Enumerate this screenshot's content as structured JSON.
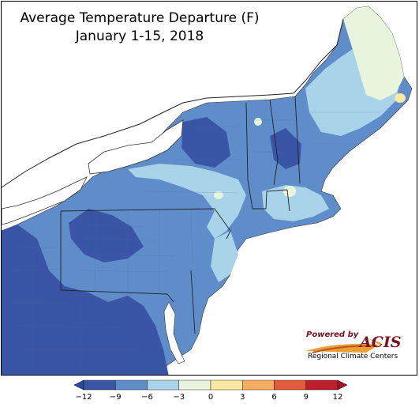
{
  "title": {
    "line1": "Average Temperature Departure (F)",
    "line2": "January 1-15, 2018"
  },
  "legend": {
    "ticks": [
      "−12",
      "−9",
      "−6",
      "−3",
      "0",
      "3",
      "6",
      "9",
      "12"
    ],
    "tick_values": [
      -12,
      -9,
      -6,
      -3,
      0,
      3,
      6,
      9,
      12
    ],
    "colors": [
      "#3a55a5",
      "#5f8dc9",
      "#a8d3e8",
      "#e8f5dc",
      "#fbe9a1",
      "#f6ad62",
      "#e55a3a",
      "#bf1f2b"
    ],
    "out_low_color": "#2e48a0",
    "out_high_color": "#aa1026"
  },
  "logo": {
    "powered_by": "Powered by",
    "name": "ACIS",
    "subtitle": "Regional Climate Centers"
  }
}
